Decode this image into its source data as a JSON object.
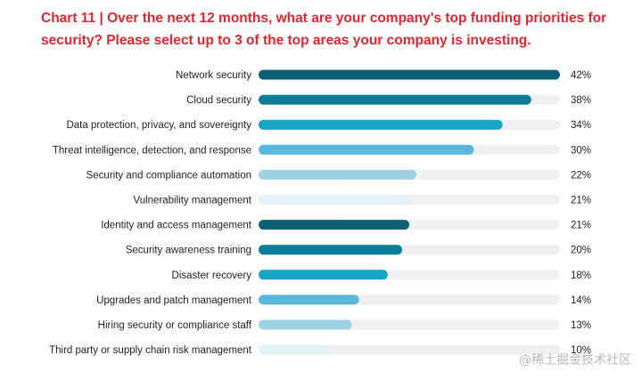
{
  "title": "Chart 11  |  Over the next 12 months, what are your company's top funding priorities for security? Please select up to 3 of the top areas your company is investing.",
  "watermark": "@稀土掘金技术社区",
  "chart_data": {
    "type": "bar",
    "orientation": "horizontal",
    "categories": [
      "Network security",
      "Cloud security",
      "Data protection, privacy, and sovereignty",
      "Threat intelligence, detection, and response",
      "Security and compliance automation",
      "Vulnerability management",
      "Identity and access management",
      "Security awareness training",
      "Disaster recovery",
      "Upgrades and patch management",
      "Hiring security or compliance staff",
      "Third party or supply chain risk management"
    ],
    "values": [
      42,
      38,
      34,
      30,
      22,
      21,
      21,
      20,
      18,
      14,
      13,
      10
    ],
    "value_labels": [
      "42%",
      "38%",
      "34%",
      "30%",
      "22%",
      "21%",
      "21%",
      "20%",
      "18%",
      "14%",
      "13%",
      "10%"
    ],
    "xlim": [
      0,
      42
    ],
    "grid": false,
    "bar_colors": [
      "#0c5f74",
      "#0a7d99",
      "#17a3c4",
      "#5ab8dc",
      "#9ed3e6",
      "#e3f2f7",
      "#0c5f74",
      "#0a7d99",
      "#17a3c4",
      "#5ab8dc",
      "#9ed3e6",
      "#e3f2f7"
    ],
    "track_color": "#f0f0f2",
    "label_color": "#1f1f1f"
  },
  "colors": {
    "title": "#e0262f",
    "background": "#ffffff"
  }
}
